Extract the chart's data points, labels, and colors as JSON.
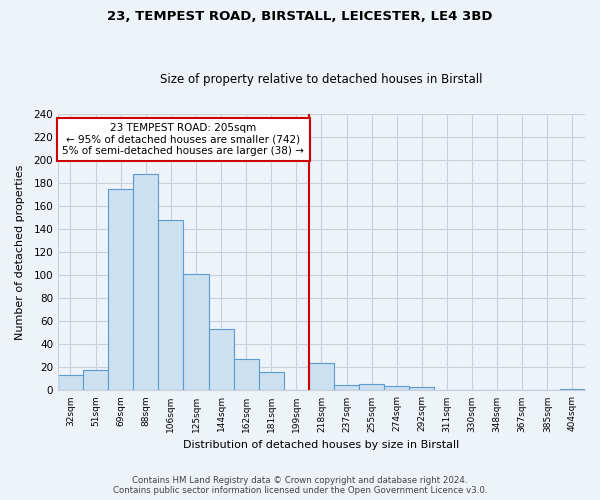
{
  "title1": "23, TEMPEST ROAD, BIRSTALL, LEICESTER, LE4 3BD",
  "title2": "Size of property relative to detached houses in Birstall",
  "xlabel": "Distribution of detached houses by size in Birstall",
  "ylabel": "Number of detached properties",
  "bin_labels": [
    "32sqm",
    "51sqm",
    "69sqm",
    "88sqm",
    "106sqm",
    "125sqm",
    "144sqm",
    "162sqm",
    "181sqm",
    "199sqm",
    "218sqm",
    "237sqm",
    "255sqm",
    "274sqm",
    "292sqm",
    "311sqm",
    "330sqm",
    "348sqm",
    "367sqm",
    "385sqm",
    "404sqm"
  ],
  "bar_heights": [
    13,
    18,
    175,
    188,
    148,
    101,
    53,
    27,
    16,
    0,
    24,
    5,
    6,
    4,
    3,
    0,
    0,
    0,
    0,
    0,
    1
  ],
  "bar_color": "#cce0f0",
  "bar_edge_color": "#5b9bd5",
  "vline_x": 10,
  "vline_color": "#cc0000",
  "annotation_title": "23 TEMPEST ROAD: 205sqm",
  "annotation_line1": "← 95% of detached houses are smaller (742)",
  "annotation_line2": "5% of semi-detached houses are larger (38) →",
  "annotation_box_color": "#ffffff",
  "annotation_box_edge": "#cc0000",
  "ylim": [
    0,
    240
  ],
  "yticks": [
    0,
    20,
    40,
    60,
    80,
    100,
    120,
    140,
    160,
    180,
    200,
    220,
    240
  ],
  "footer1": "Contains HM Land Registry data © Crown copyright and database right 2024.",
  "footer2": "Contains public sector information licensed under the Open Government Licence v3.0.",
  "bg_color": "#eef2f9",
  "plot_bg_color": "#eef2f9",
  "grid_color": "#c8d0e0"
}
